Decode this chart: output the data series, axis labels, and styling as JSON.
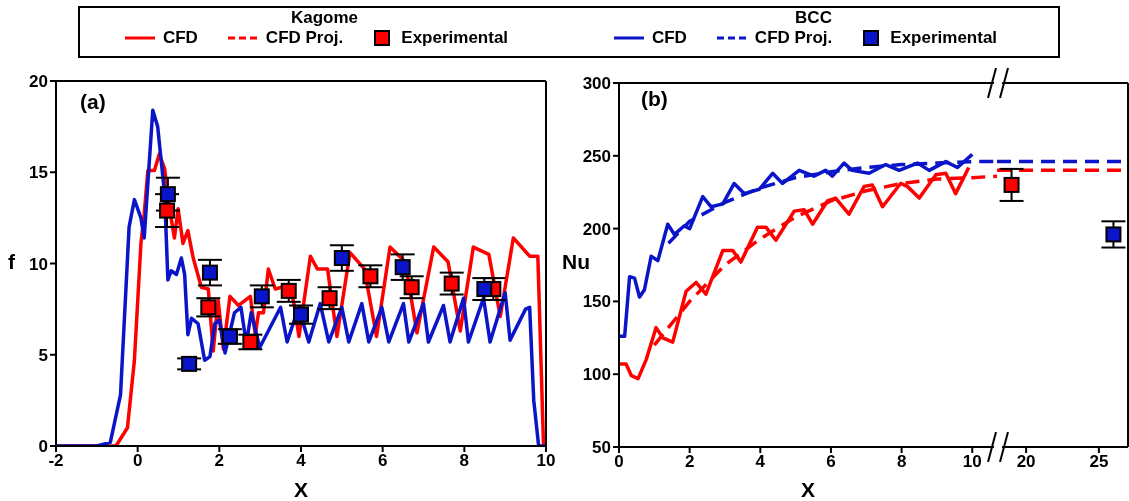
{
  "chart_data": [
    {
      "type": "line",
      "xlabel": "X",
      "ylabel": "f",
      "legend": "top",
      "legend_title": "Kagome",
      "annotations": [
        "(a)"
      ],
      "xlim": [
        -2,
        10
      ],
      "xticks": [
        -2,
        0,
        2,
        4,
        6,
        8,
        10
      ],
      "ylim": [
        0,
        20
      ],
      "yticks": [
        0,
        5,
        10,
        15,
        20
      ],
      "series": [
        {
          "name": "CFD",
          "color": "#ff0000",
          "x": [
            -2,
            -0.53,
            -0.25,
            -0.08,
            0.08,
            0.16,
            0.25,
            0.41,
            0.53,
            0.66,
            0.78,
            0.9,
            0.99,
            1.11,
            1.23,
            1.36,
            1.56,
            1.73,
            1.85,
            1.97,
            2.1,
            2.26,
            2.47,
            2.76,
            2.88,
            2.96,
            3.08,
            3.2,
            3.37,
            3.7,
            3.82,
            3.95,
            4.23,
            4.4,
            4.65,
            4.88,
            5.2,
            5.55,
            5.85,
            6.18,
            6.55,
            6.84,
            7.25,
            7.6,
            7.9,
            8.22,
            8.6,
            8.88,
            9.2,
            9.6,
            9.8,
            9.94,
            10
          ],
          "values": [
            0,
            0,
            1.0,
            4.7,
            11.1,
            12.7,
            15.1,
            15.1,
            16.0,
            15.2,
            13.0,
            11.4,
            13.0,
            11.1,
            11.8,
            10.3,
            8.7,
            8.6,
            5.2,
            8.0,
            5.3,
            8.2,
            7.7,
            8.2,
            6.1,
            7.3,
            7.3,
            9.7,
            8.6,
            8.8,
            7.9,
            6.0,
            10.4,
            9.7,
            9.7,
            6.0,
            10.6,
            9.7,
            6.0,
            10.9,
            10.1,
            6.2,
            10.9,
            10.1,
            6.3,
            10.9,
            10.5,
            7.1,
            11.4,
            10.4,
            10.4,
            0,
            0
          ]
        },
        {
          "name": "CFD",
          "color": "#0a14c8",
          "x": [
            -2,
            -1,
            -0.67,
            -0.42,
            -0.21,
            -0.08,
            0.08,
            0.16,
            0.37,
            0.49,
            0.66,
            0.74,
            0.82,
            0.95,
            1.07,
            1.15,
            1.23,
            1.32,
            1.48,
            1.64,
            1.77,
            1.89,
            2.0,
            2.14,
            2.37,
            2.53,
            2.66,
            2.78,
            2.99,
            3.5,
            3.66,
            3.94,
            4.19,
            4.47,
            4.68,
            5.0,
            5.17,
            5.49,
            5.66,
            5.98,
            6.15,
            6.51,
            6.64,
            7.0,
            7.12,
            7.49,
            7.65,
            7.98,
            8.1,
            8.47,
            8.63,
            9.0,
            9.12,
            9.5,
            9.6,
            9.7,
            9.82,
            10
          ],
          "values": [
            0,
            0,
            0.2,
            2.8,
            12,
            13.5,
            12.5,
            11.4,
            18.4,
            17.5,
            13.8,
            9.1,
            9.6,
            9.4,
            10.3,
            9.4,
            6.1,
            7.0,
            6.7,
            4.7,
            4.9,
            6.7,
            6.9,
            5.1,
            7.3,
            7.6,
            5.6,
            7.3,
            5.4,
            7.6,
            5.7,
            7.6,
            5.7,
            7.8,
            5.7,
            7.6,
            5.7,
            7.8,
            5.7,
            7.6,
            5.7,
            7.8,
            5.7,
            7.8,
            5.7,
            7.7,
            5.7,
            8.1,
            5.7,
            8.1,
            5.7,
            8.4,
            5.8,
            7.5,
            7.6,
            2.5,
            0,
            0
          ]
        },
        {
          "type": "scatter",
          "marker": "square",
          "name": "Experimental",
          "color": "#ff0000",
          "x": [
            0.72,
            1.73,
            2.76,
            3.7,
            4.7,
            5.7,
            6.71,
            7.69,
            8.71
          ],
          "values": [
            12.9,
            7.6,
            5.7,
            8.5,
            8.1,
            9.3,
            8.7,
            8.9,
            8.6
          ],
          "errors": [
            0.9,
            0.5,
            0.4,
            0.6,
            0.6,
            0.6,
            0.6,
            0.6,
            0.6
          ]
        },
        {
          "type": "scatter",
          "marker": "square",
          "name": "Experimental",
          "color": "#0a14c8",
          "x": [
            0.74,
            1.26,
            1.77,
            2.26,
            3.04,
            4.0,
            5.0,
            6.49,
            8.49
          ],
          "values": [
            13.8,
            4.5,
            9.5,
            6.0,
            8.2,
            7.2,
            10.3,
            9.8,
            8.6
          ],
          "errors": [
            0.9,
            0.3,
            0.7,
            0.4,
            0.6,
            0.5,
            0.7,
            0.7,
            0.6
          ]
        }
      ]
    },
    {
      "type": "line",
      "xlabel": "X",
      "ylabel": "Nu",
      "legend": "top",
      "legend_title": "BCC",
      "annotations": [
        "(b)"
      ],
      "xlim": [
        0,
        10.7
      ],
      "xticks": [
        0,
        2,
        4,
        6,
        8,
        10
      ],
      "ylim": [
        50,
        300
      ],
      "yticks": [
        50,
        100,
        150,
        200,
        250,
        300
      ],
      "series": [
        {
          "color": "#ff0000",
          "x": [
            0,
            0.2,
            0.35,
            0.54,
            0.77,
            1.05,
            1.24,
            1.52,
            1.9,
            2.18,
            2.46,
            2.94,
            3.22,
            3.45,
            3.92,
            4.16,
            4.44,
            4.96,
            5.24,
            5.48,
            5.9,
            6.13,
            6.51,
            6.94,
            7.17,
            7.46,
            7.97,
            8.16,
            8.5,
            8.97,
            9.25,
            9.53,
            9.9
          ],
          "values": [
            107,
            107,
            99,
            97,
            110,
            132,
            125,
            122,
            157,
            163,
            155,
            185,
            185,
            177,
            201,
            201,
            192,
            212,
            213,
            203,
            219,
            221,
            210,
            229,
            230,
            215,
            231,
            229,
            221,
            237,
            238,
            224,
            242
          ]
        },
        {
          "color": "#0a14c8",
          "x": [
            0,
            0.16,
            0.3,
            0.44,
            0.58,
            0.72,
            0.91,
            1.1,
            1.38,
            1.57,
            1.85,
            2.0,
            2.37,
            2.61,
            2.94,
            3.26,
            3.55,
            3.97,
            4.35,
            4.63,
            5.1,
            5.52,
            5.85,
            6.04,
            6.37,
            6.6,
            7.08,
            7.55,
            7.93,
            8.45,
            8.78,
            9.25,
            9.58,
            10.0
          ],
          "values": [
            126,
            126,
            167,
            166,
            153,
            158,
            181,
            178,
            203,
            196,
            202,
            200,
            222,
            215,
            217,
            231,
            224,
            227,
            238,
            231,
            240,
            236,
            240,
            236,
            245,
            240,
            238,
            244,
            240,
            245,
            240,
            246,
            242,
            251
          ]
        },
        {
          "name": "CFD Proj.",
          "line_style": "dashed",
          "color": "#ff0000",
          "x": [
            1,
            2,
            3,
            4,
            5,
            6,
            7,
            8,
            9,
            10,
            10.7
          ],
          "values": [
            120,
            150,
            175,
            193,
            208,
            219,
            226,
            231,
            234,
            235,
            236
          ]
        },
        {
          "name": "CFD Proj.",
          "line_style": "dashed",
          "color": "#0a14c8",
          "x": [
            1.4,
            2,
            3,
            4,
            5,
            6,
            7,
            8,
            9,
            10,
            10.7
          ],
          "values": [
            190,
            205,
            218,
            228,
            235,
            239,
            242,
            244,
            245,
            246,
            246
          ]
        }
      ]
    },
    {
      "type": "line",
      "tick_labels": "x",
      "xlim": [
        18,
        27
      ],
      "xticks": [
        20,
        25
      ],
      "ylim": [
        50,
        300
      ],
      "yticks": [
        50,
        100,
        150,
        200,
        250,
        300
      ],
      "series": [
        {
          "line_style": "dashed",
          "color": "#ff0000",
          "x": [
            18,
            27
          ],
          "values": [
            240,
            240
          ]
        },
        {
          "line_style": "dashed",
          "color": "#0a14c8",
          "x": [
            18,
            27
          ],
          "values": [
            246,
            246
          ]
        },
        {
          "type": "scatter",
          "marker": "square",
          "color": "#ff0000",
          "x": [
            19
          ],
          "values": [
            230
          ],
          "errors": [
            11
          ]
        },
        {
          "type": "scatter",
          "marker": "square",
          "color": "#0a14c8",
          "x": [
            26
          ],
          "values": [
            196
          ],
          "errors": [
            9
          ]
        }
      ]
    }
  ]
}
